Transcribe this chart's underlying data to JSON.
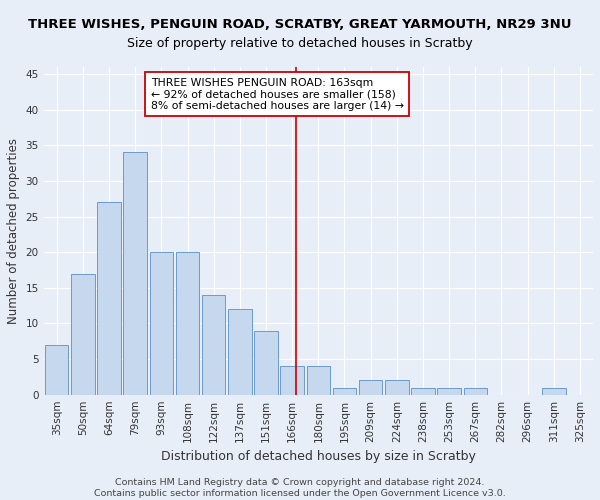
{
  "title": "THREE WISHES, PENGUIN ROAD, SCRATBY, GREAT YARMOUTH, NR29 3NU",
  "subtitle": "Size of property relative to detached houses in Scratby",
  "xlabel": "Distribution of detached houses by size in Scratby",
  "ylabel": "Number of detached properties",
  "footnote": "Contains HM Land Registry data © Crown copyright and database right 2024.\nContains public sector information licensed under the Open Government Licence v3.0.",
  "bar_labels": [
    "35sqm",
    "50sqm",
    "64sqm",
    "79sqm",
    "93sqm",
    "108sqm",
    "122sqm",
    "137sqm",
    "151sqm",
    "166sqm",
    "180sqm",
    "195sqm",
    "209sqm",
    "224sqm",
    "238sqm",
    "253sqm",
    "267sqm",
    "282sqm",
    "296sqm",
    "311sqm",
    "325sqm"
  ],
  "bar_values": [
    7,
    17,
    27,
    34,
    20,
    20,
    14,
    12,
    9,
    4,
    4,
    1,
    2,
    2,
    1,
    1,
    1,
    0,
    0,
    1,
    0
  ],
  "bar_color": "#c5d8ed",
  "bar_edgecolor": "#5b8fc7",
  "background_color": "#e8eef8",
  "grid_color": "#ffffff",
  "red_line_x": 9.13,
  "annotation_text": "THREE WISHES PENGUIN ROAD: 163sqm\n← 92% of detached houses are smaller (158)\n8% of semi-detached houses are larger (14) →",
  "annotation_box_color": "#ffffff",
  "annotation_box_edgecolor": "#cc0000",
  "ylim": [
    0,
    46
  ],
  "yticks": [
    0,
    5,
    10,
    15,
    20,
    25,
    30,
    35,
    40,
    45
  ],
  "title_fontsize": 9.5,
  "subtitle_fontsize": 9.0,
  "ylabel_fontsize": 8.5,
  "xlabel_fontsize": 9.0,
  "tick_fontsize": 7.5,
  "annotation_fontsize": 7.8,
  "footnote_fontsize": 6.8
}
